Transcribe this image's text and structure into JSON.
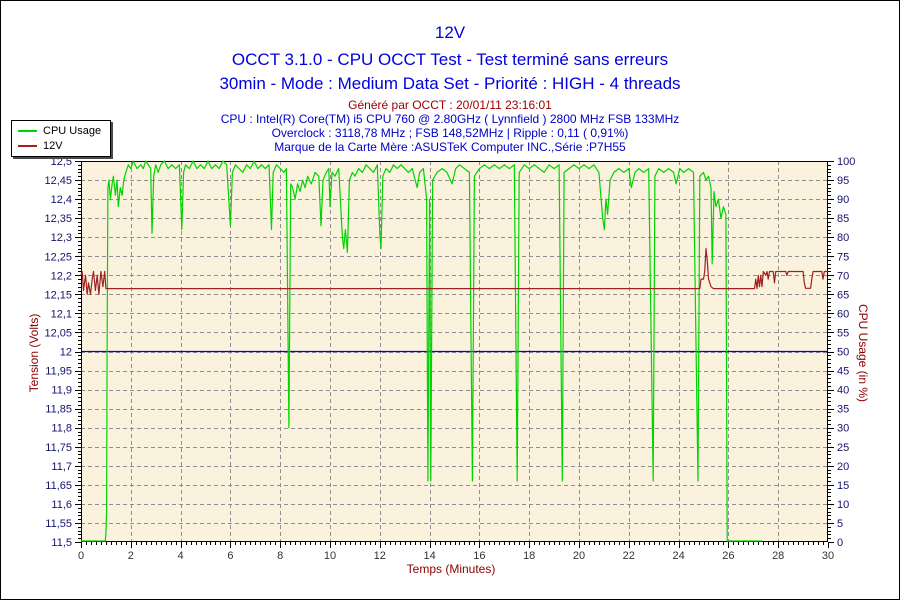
{
  "header": {
    "title": "12V",
    "subtitle1": "OCCT 3.1.0 - CPU OCCT Test - Test terminé sans erreurs",
    "subtitle2": "30min - Mode : Medium Data Set - Priorité : HIGH - 4 threads",
    "generated": "Généré par OCCT : 20/01/11 23:16:01",
    "cpu_line": "CPU : Intel(R) Core(TM) i5 CPU 760 @ 2.80GHz ( Lynnfield ) 2800 MHz FSB 133MHz",
    "overclock_line": "Overclock : 3118,78 MHz ; FSB 148,52MHz | Ripple : 0,11 ( 0,91%)",
    "motherboard_line": "Marque de la Carte Mère :ASUSTeK Computer INC.,Série :P7H55"
  },
  "text_colors": {
    "title_blue": "#0000dc",
    "info_blue": "#0000c8",
    "info_dark_red": "#a00000"
  },
  "chart_data": {
    "type": "line",
    "title": "12V",
    "plot_bg": "#fbf2de",
    "grid": {
      "show": true,
      "color": "#8f8f8f",
      "dash": "4 3"
    },
    "axis_color": "#000000",
    "x_axis": {
      "label": "Temps (Minutes)",
      "min": 0,
      "max": 30,
      "major_step": 2,
      "minor_step": 0.2,
      "tick_color": "#333333"
    },
    "y_left": {
      "label": "Tension (Volts)",
      "min": 11.5,
      "max": 12.5,
      "major_step": 0.05,
      "minor_step": 0.01,
      "tick_color": "#14146e",
      "decimal_comma": true
    },
    "y_right": {
      "label": "CPU Usage (in %)",
      "min": 0,
      "max": 100,
      "major_step": 5,
      "minor_step": 1,
      "tick_color": "#14146e"
    },
    "legend_position": "top-left",
    "reference_lines": [
      {
        "axis": "left",
        "value": 12.0,
        "color": "#0000f0"
      }
    ],
    "series": [
      {
        "name": "CPU Usage",
        "axis": "right",
        "color": "#00d400",
        "points": [
          [
            0,
            0
          ],
          [
            0.97,
            0
          ],
          [
            1.0,
            2
          ],
          [
            1.03,
            8
          ],
          [
            1.05,
            50
          ],
          [
            1.08,
            93
          ],
          [
            1.12,
            95
          ],
          [
            1.18,
            90
          ],
          [
            1.25,
            94
          ],
          [
            1.3,
            96
          ],
          [
            1.38,
            91
          ],
          [
            1.45,
            95
          ],
          [
            1.5,
            88
          ],
          [
            1.58,
            93
          ],
          [
            1.65,
            91
          ],
          [
            1.72,
            95
          ],
          [
            1.8,
            97
          ],
          [
            1.9,
            99
          ],
          [
            2.0,
            98
          ],
          [
            2.1,
            100
          ],
          [
            2.25,
            98
          ],
          [
            2.4,
            99
          ],
          [
            2.5,
            98
          ],
          [
            2.6,
            100
          ],
          [
            2.7,
            99
          ],
          [
            2.8,
            98
          ],
          [
            2.85,
            81
          ],
          [
            2.92,
            96
          ],
          [
            3.0,
            99
          ],
          [
            3.1,
            97
          ],
          [
            3.2,
            99
          ],
          [
            3.35,
            100
          ],
          [
            3.5,
            98
          ],
          [
            3.65,
            99
          ],
          [
            3.8,
            98
          ],
          [
            3.95,
            99
          ],
          [
            4.05,
            82
          ],
          [
            4.12,
            97
          ],
          [
            4.2,
            99
          ],
          [
            4.35,
            98
          ],
          [
            4.5,
            100
          ],
          [
            4.65,
            98
          ],
          [
            4.8,
            99
          ],
          [
            4.95,
            98
          ],
          [
            5.1,
            100
          ],
          [
            5.25,
            98
          ],
          [
            5.4,
            99
          ],
          [
            5.55,
            98
          ],
          [
            5.7,
            100
          ],
          [
            5.85,
            99
          ],
          [
            6.0,
            83
          ],
          [
            6.08,
            97
          ],
          [
            6.2,
            99
          ],
          [
            6.35,
            98
          ],
          [
            6.5,
            97
          ],
          [
            6.65,
            99
          ],
          [
            6.8,
            98
          ],
          [
            6.95,
            100
          ],
          [
            7.1,
            98
          ],
          [
            7.25,
            99
          ],
          [
            7.4,
            98
          ],
          [
            7.55,
            99
          ],
          [
            7.65,
            82
          ],
          [
            7.72,
            97
          ],
          [
            7.85,
            99
          ],
          [
            8.0,
            98
          ],
          [
            8.15,
            97
          ],
          [
            8.25,
            98
          ],
          [
            8.35,
            30
          ],
          [
            8.42,
            94
          ],
          [
            8.5,
            93
          ],
          [
            8.6,
            90
          ],
          [
            8.7,
            94
          ],
          [
            8.8,
            92
          ],
          [
            8.9,
            95
          ],
          [
            9.0,
            93
          ],
          [
            9.1,
            96
          ],
          [
            9.25,
            94
          ],
          [
            9.4,
            97
          ],
          [
            9.55,
            96
          ],
          [
            9.64,
            83
          ],
          [
            9.72,
            95
          ],
          [
            9.85,
            97
          ],
          [
            9.95,
            98
          ],
          [
            10.0,
            88
          ],
          [
            10.08,
            97
          ],
          [
            10.2,
            96
          ],
          [
            10.35,
            98
          ],
          [
            10.5,
            80
          ],
          [
            10.55,
            77
          ],
          [
            10.62,
            82
          ],
          [
            10.7,
            76
          ],
          [
            10.78,
            95
          ],
          [
            10.9,
            97
          ],
          [
            11.0,
            96
          ],
          [
            11.15,
            98
          ],
          [
            11.3,
            97
          ],
          [
            11.45,
            99
          ],
          [
            11.6,
            98
          ],
          [
            11.75,
            97
          ],
          [
            11.9,
            99
          ],
          [
            12.0,
            81
          ],
          [
            12.05,
            77
          ],
          [
            12.12,
            96
          ],
          [
            12.25,
            98
          ],
          [
            12.4,
            97
          ],
          [
            12.55,
            99
          ],
          [
            12.7,
            98
          ],
          [
            12.85,
            99
          ],
          [
            13.0,
            98
          ],
          [
            13.15,
            97
          ],
          [
            13.3,
            98
          ],
          [
            13.5,
            93
          ],
          [
            13.6,
            97
          ],
          [
            13.75,
            98
          ],
          [
            13.88,
            90
          ],
          [
            13.93,
            16
          ],
          [
            14.0,
            90
          ],
          [
            14.05,
            16
          ],
          [
            14.12,
            95
          ],
          [
            14.3,
            97
          ],
          [
            14.5,
            98
          ],
          [
            14.7,
            97
          ],
          [
            14.9,
            94
          ],
          [
            15.05,
            98
          ],
          [
            15.2,
            99
          ],
          [
            15.4,
            98
          ],
          [
            15.6,
            97
          ],
          [
            15.72,
            16
          ],
          [
            15.8,
            96
          ],
          [
            16.0,
            98
          ],
          [
            16.2,
            99
          ],
          [
            16.4,
            98
          ],
          [
            16.6,
            99
          ],
          [
            16.8,
            98
          ],
          [
            17.0,
            99
          ],
          [
            17.2,
            98
          ],
          [
            17.4,
            99
          ],
          [
            17.52,
            16
          ],
          [
            17.6,
            97
          ],
          [
            17.8,
            99
          ],
          [
            18.0,
            98
          ],
          [
            18.2,
            99
          ],
          [
            18.4,
            98
          ],
          [
            18.6,
            97
          ],
          [
            18.8,
            99
          ],
          [
            19.0,
            98
          ],
          [
            19.2,
            99
          ],
          [
            19.33,
            16
          ],
          [
            19.4,
            97
          ],
          [
            19.6,
            98
          ],
          [
            19.8,
            99
          ],
          [
            20.0,
            98
          ],
          [
            20.2,
            99
          ],
          [
            20.4,
            98
          ],
          [
            20.6,
            99
          ],
          [
            20.8,
            97
          ],
          [
            20.95,
            85
          ],
          [
            21.02,
            82
          ],
          [
            21.08,
            90
          ],
          [
            21.15,
            86
          ],
          [
            21.25,
            95
          ],
          [
            21.4,
            97
          ],
          [
            21.6,
            98
          ],
          [
            21.8,
            97
          ],
          [
            22.0,
            98
          ],
          [
            22.1,
            93
          ],
          [
            22.25,
            97
          ],
          [
            22.4,
            98
          ],
          [
            22.6,
            97
          ],
          [
            22.8,
            98
          ],
          [
            22.98,
            16
          ],
          [
            23.05,
            96
          ],
          [
            23.2,
            98
          ],
          [
            23.4,
            97
          ],
          [
            23.6,
            98
          ],
          [
            23.8,
            97
          ],
          [
            23.9,
            94
          ],
          [
            24.05,
            98
          ],
          [
            24.2,
            97
          ],
          [
            24.4,
            98
          ],
          [
            24.6,
            97
          ],
          [
            24.78,
            16
          ],
          [
            24.85,
            96
          ],
          [
            25.0,
            97
          ],
          [
            25.1,
            95
          ],
          [
            25.2,
            96
          ],
          [
            25.3,
            93
          ],
          [
            25.35,
            73
          ],
          [
            25.42,
            92
          ],
          [
            25.5,
            88
          ],
          [
            25.6,
            90
          ],
          [
            25.7,
            85
          ],
          [
            25.8,
            88
          ],
          [
            25.9,
            86
          ],
          [
            25.95,
            0
          ],
          [
            27.35,
            0
          ]
        ]
      },
      {
        "name": "12V",
        "axis": "left",
        "color": "#9e2222",
        "points": [
          [
            0,
            12.2
          ],
          [
            0.05,
            12.21
          ],
          [
            0.1,
            12.16
          ],
          [
            0.18,
            12.2
          ],
          [
            0.25,
            12.15
          ],
          [
            0.3,
            12.18
          ],
          [
            0.38,
            12.15
          ],
          [
            0.45,
            12.19
          ],
          [
            0.5,
            12.21
          ],
          [
            0.58,
            12.16
          ],
          [
            0.65,
            12.2
          ],
          [
            0.72,
            12.15
          ],
          [
            0.8,
            12.21
          ],
          [
            0.88,
            12.17
          ],
          [
            0.95,
            12.21
          ],
          [
            1.0,
            12.165
          ],
          [
            24.85,
            12.165
          ],
          [
            24.9,
            12.19
          ],
          [
            25.0,
            12.19
          ],
          [
            25.05,
            12.21
          ],
          [
            25.1,
            12.27
          ],
          [
            25.15,
            12.24
          ],
          [
            25.2,
            12.19
          ],
          [
            25.3,
            12.17
          ],
          [
            25.4,
            12.165
          ],
          [
            27.05,
            12.165
          ],
          [
            27.1,
            12.19
          ],
          [
            27.15,
            12.165
          ],
          [
            27.2,
            12.2
          ],
          [
            27.25,
            12.17
          ],
          [
            27.3,
            12.2
          ],
          [
            27.35,
            12.17
          ],
          [
            27.4,
            12.21
          ],
          [
            27.5,
            12.2
          ],
          [
            27.55,
            12.21
          ],
          [
            27.6,
            12.19
          ],
          [
            27.65,
            12.21
          ],
          [
            27.8,
            12.21
          ],
          [
            27.85,
            12.18
          ],
          [
            27.9,
            12.21
          ],
          [
            28.3,
            12.21
          ],
          [
            28.35,
            12.2
          ],
          [
            28.4,
            12.21
          ],
          [
            29.0,
            12.21
          ],
          [
            29.05,
            12.18
          ],
          [
            29.1,
            12.166
          ],
          [
            29.3,
            12.166
          ],
          [
            29.35,
            12.19
          ],
          [
            29.4,
            12.21
          ],
          [
            29.75,
            12.21
          ],
          [
            29.8,
            12.19
          ],
          [
            29.85,
            12.21
          ],
          [
            30,
            12.21
          ]
        ]
      }
    ]
  }
}
